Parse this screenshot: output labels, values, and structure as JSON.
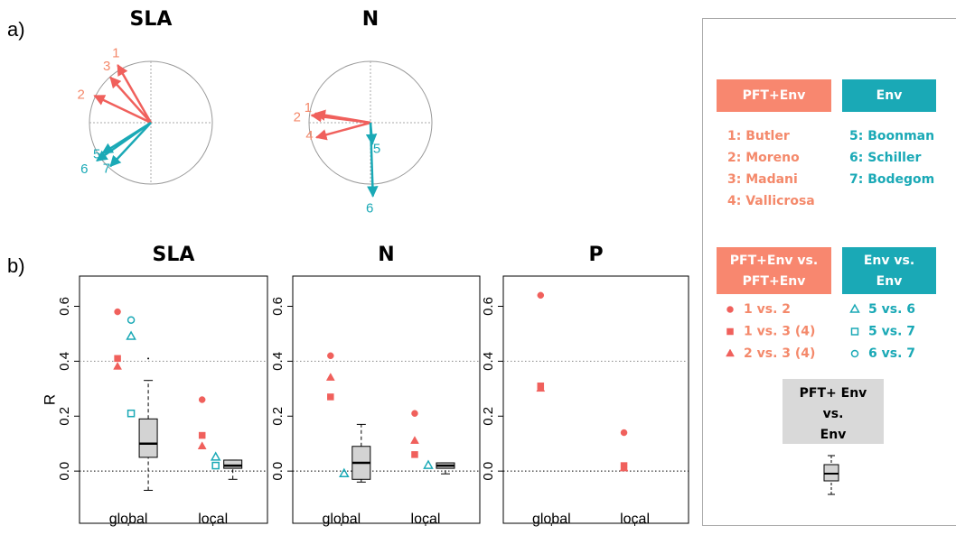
{
  "panel_labels": {
    "a": "a)",
    "b": "b)"
  },
  "chart_data": [
    {
      "type": "vectors",
      "title": "SLA",
      "xlim": [
        -1,
        1
      ],
      "ylim": [
        -1,
        1
      ],
      "series": [
        {
          "color": "#f0605c",
          "label_color": "#f4896b",
          "labels": [
            "1",
            "2",
            "3"
          ],
          "x": [
            -0.54,
            -0.92,
            -0.66
          ],
          "y": [
            0.94,
            0.44,
            0.74
          ]
        },
        {
          "color": "#1aa9b6",
          "label_color": "#1aa9b6",
          "labels": [
            "5",
            "6",
            "7"
          ],
          "x": [
            -0.79,
            -0.88,
            -0.66
          ],
          "y": [
            -0.5,
            -0.62,
            -0.71
          ]
        }
      ]
    },
    {
      "type": "vectors",
      "title": "N",
      "xlim": [
        -1,
        1
      ],
      "ylim": [
        -1,
        1
      ],
      "series": [
        {
          "color": "#f0605c",
          "label_color": "#f4896b",
          "labels": [
            "1",
            "2",
            "4"
          ],
          "x": [
            -0.9,
            -0.96,
            -0.88
          ],
          "y": [
            0.15,
            0.12,
            -0.24
          ]
        },
        {
          "color": "#1aa9b6",
          "label_color": "#1aa9b6",
          "labels": [
            "5",
            "6"
          ],
          "x": [
            0.03,
            0.04
          ],
          "y": [
            -0.35,
            -1.2
          ]
        }
      ]
    },
    {
      "type": "box",
      "title": "SLA",
      "ylabel": "R",
      "categories": [
        "global",
        "local"
      ],
      "ylim": [
        -0.19,
        0.71
      ],
      "yticks": [
        {
          "value": 0,
          "label": "0.0"
        },
        {
          "value": 0.2,
          "label": "0.2"
        },
        {
          "value": 0.4,
          "label": "0.4"
        },
        {
          "value": 0.6,
          "label": "0.6"
        }
      ],
      "ref_lines": [
        0,
        0.4
      ],
      "series": [
        {
          "name": "1 vs. 2",
          "color": "#f0605c",
          "marker": "circle",
          "filled": true,
          "values": [
            0.58,
            0.26
          ]
        },
        {
          "name": "1 vs. 3 (4)",
          "color": "#f0605c",
          "marker": "square",
          "filled": true,
          "values": [
            0.41,
            0.13
          ]
        },
        {
          "name": "2 vs. 3 (4)",
          "color": "#f0605c",
          "marker": "triangle",
          "filled": true,
          "values": [
            0.38,
            0.09
          ]
        },
        {
          "name": "5 vs. 6",
          "color": "#1aa9b6",
          "marker": "triangle",
          "filled": false,
          "values": [
            0.49,
            0.05
          ]
        },
        {
          "name": "5 vs. 7",
          "color": "#1aa9b6",
          "marker": "square",
          "filled": false,
          "values": [
            0.21,
            0.02
          ]
        },
        {
          "name": "6 vs. 7",
          "color": "#1aa9b6",
          "marker": "circle",
          "filled": false,
          "values": [
            0.55,
            null
          ]
        }
      ],
      "boxes": [
        {
          "min": -0.07,
          "q1": 0.05,
          "median": 0.1,
          "q3": 0.19,
          "max": 0.33,
          "outliers": [
            0.41
          ]
        },
        {
          "min": -0.03,
          "q1": 0.01,
          "median": 0.02,
          "q3": 0.04,
          "max": 0.04,
          "outliers": []
        }
      ]
    },
    {
      "type": "box",
      "title": "N",
      "categories": [
        "global",
        "local"
      ],
      "ylim": [
        -0.19,
        0.71
      ],
      "yticks": [
        {
          "value": 0,
          "label": "0.0"
        },
        {
          "value": 0.2,
          "label": "0.2"
        },
        {
          "value": 0.4,
          "label": "0.4"
        },
        {
          "value": 0.6,
          "label": "0.6"
        }
      ],
      "ref_lines": [
        0,
        0.4
      ],
      "series": [
        {
          "color": "#f0605c",
          "marker": "circle",
          "filled": true,
          "values": [
            0.42,
            0.21
          ]
        },
        {
          "color": "#f0605c",
          "marker": "square",
          "filled": true,
          "values": [
            0.27,
            0.06
          ]
        },
        {
          "color": "#f0605c",
          "marker": "triangle",
          "filled": true,
          "values": [
            0.34,
            0.11
          ]
        },
        {
          "color": "#1aa9b6",
          "marker": "triangle",
          "filled": false,
          "values": [
            -0.01,
            0.02
          ]
        }
      ],
      "boxes": [
        {
          "min": -0.04,
          "q1": -0.03,
          "median": 0.03,
          "q3": 0.09,
          "max": 0.17,
          "outliers": []
        },
        {
          "min": -0.01,
          "q1": 0.01,
          "median": 0.02,
          "q3": 0.03,
          "max": 0.03,
          "outliers": []
        }
      ]
    },
    {
      "type": "box",
      "title": "P",
      "categories": [
        "global",
        "local"
      ],
      "ylim": [
        -0.19,
        0.71
      ],
      "yticks": [
        {
          "value": 0,
          "label": "0.0"
        },
        {
          "value": 0.2,
          "label": "0.2"
        },
        {
          "value": 0.4,
          "label": "0.4"
        },
        {
          "value": 0.6,
          "label": "0.6"
        }
      ],
      "ref_lines": [
        0,
        0.4
      ],
      "series": [
        {
          "color": "#f0605c",
          "marker": "circle",
          "filled": true,
          "values": [
            0.64,
            0.14
          ]
        },
        {
          "color": "#f0605c",
          "marker": "square",
          "filled": true,
          "values": [
            0.31,
            0.02
          ]
        },
        {
          "color": "#f0605c",
          "marker": "triangle",
          "filled": true,
          "values": [
            0.3,
            0.01
          ]
        }
      ]
    }
  ],
  "legend": {
    "group_headers": [
      "PFT+Env",
      "Env"
    ],
    "pft_studies": [
      "1: Butler",
      "2: Moreno",
      "3: Madani",
      "4: Vallicrosa"
    ],
    "env_studies": [
      "5: Boonman",
      "6: Schiller",
      "7: Bodegom"
    ],
    "pft_pair_header": [
      "PFT+Env vs.",
      "PFT+Env"
    ],
    "env_pair_header": [
      "Env vs.",
      "Env"
    ],
    "cross_header": [
      "PFT+ Env",
      "vs.",
      "Env"
    ]
  }
}
